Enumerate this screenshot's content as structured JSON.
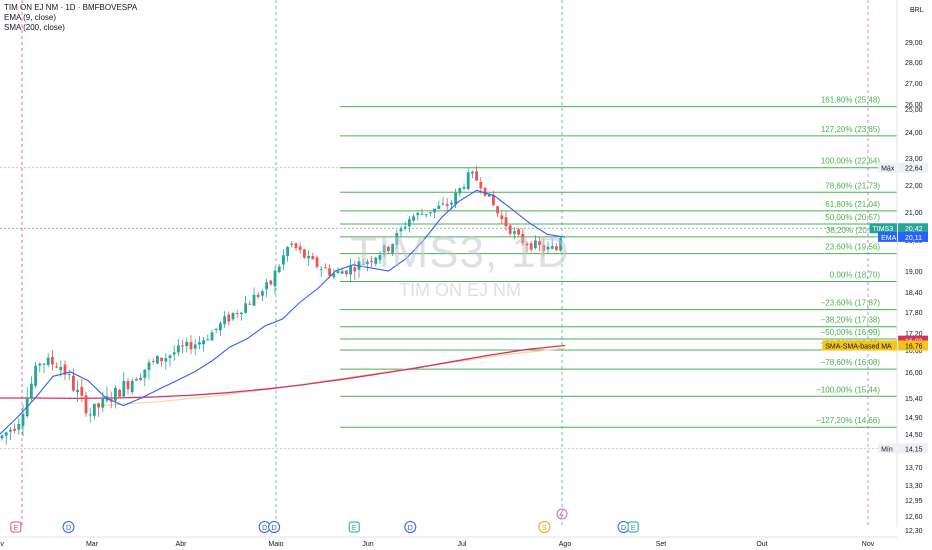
{
  "header": {
    "symbol_line": "TIM ON EJ NM · 1D · BMFBOVESPA",
    "indicator_1": "EMA (9, close)",
    "indicator_2": "SMA (200, close)"
  },
  "watermark": {
    "ticker": "TIMS3, 1D",
    "name": "TIM ON EJ NM"
  },
  "chart_data": {
    "type": "line",
    "currency_label": "BRL",
    "price_axis": {
      "ticks": [
        29.0,
        28.0,
        27.0,
        26.0,
        25.0,
        24.0,
        23.0,
        22.0,
        21.0,
        20.0,
        19.0,
        18.4,
        17.8,
        17.2,
        16.6,
        16.0,
        15.4,
        14.9,
        14.5,
        13.7,
        13.3,
        12.95,
        12.6,
        12.3
      ],
      "tick_labels": [
        "29,00",
        "28,00",
        "27,00",
        "26,00",
        "25,00",
        "24,00",
        "23,00",
        "22,00",
        "21,00",
        "20,00",
        "19,00",
        "18,40",
        "17,80",
        "17,20",
        "16,60",
        "16,00",
        "15,40",
        "14,90",
        "14,50",
        "13,70",
        "13,30",
        "12,95",
        "12,60",
        "12,30"
      ]
    },
    "x_axis_labels": [
      "Fev",
      "Mar",
      "Abr",
      "Maio",
      "Jun",
      "Jul",
      "Ago",
      "Set",
      "Out",
      "Nov"
    ],
    "price_labels": [
      {
        "text": "Máx",
        "value": "22,64",
        "price": 22.64
      },
      {
        "text": "TIMS3",
        "value": "20,42",
        "price": 20.42
      },
      {
        "text": "EMA",
        "value": "20,11",
        "price": 20.11
      },
      {
        "text": "",
        "value": "16,93",
        "price": 16.93
      },
      {
        "text": "SMA-SMA-based MA",
        "value": "16,76",
        "price": 16.76
      },
      {
        "text": "Mín",
        "value": "14,15",
        "price": 14.15
      }
    ],
    "fibonacci": [
      {
        "label": "161,80% (25,48)",
        "price": 25.48
      },
      {
        "label": "127,20% (23,85)",
        "price": 23.85
      },
      {
        "label": "100,00% (22,64)",
        "price": 22.64
      },
      {
        "label": "78,60% (21,73)",
        "price": 21.73
      },
      {
        "label": "61,80% (21,04)",
        "price": 21.04
      },
      {
        "label": "50,00% (20,57)",
        "price": 20.57
      },
      {
        "label": "38,20% (20,11)",
        "price": 20.11
      },
      {
        "label": "23,60% (19,56)",
        "price": 19.56
      },
      {
        "label": "0,00% (18,70)",
        "price": 18.7
      },
      {
        "label": "−23,60% (17,87)",
        "price": 17.87
      },
      {
        "label": "−38,20% (17,38)",
        "price": 17.38
      },
      {
        "label": "−50,00% (16,99)",
        "price": 16.99
      },
      {
        "label": "−61,80% (16,60)",
        "price": 16.6
      },
      {
        "label": "−78,60% (16,08)",
        "price": 16.08
      },
      {
        "label": "−100,00% (15,44)",
        "price": 15.44
      },
      {
        "label": "−127,20% (14,66)",
        "price": 14.66
      }
    ],
    "ema_9": [
      14.5,
      14.9,
      15.4,
      15.9,
      16.0,
      15.8,
      15.4,
      15.2,
      15.4,
      15.6,
      15.8,
      16.0,
      16.3,
      16.7,
      17.0,
      17.4,
      17.6,
      18.1,
      18.5,
      19.0,
      19.2,
      19.1,
      19.0,
      19.4,
      20.0,
      20.8,
      21.4,
      21.8,
      21.6,
      21.1,
      20.6,
      20.2,
      20.1
    ],
    "sma_200": [
      15.4,
      15.4,
      15.39,
      15.4,
      15.42,
      15.46,
      15.52,
      15.6,
      15.7,
      15.82,
      15.95,
      16.1,
      16.28,
      16.46,
      16.62,
      16.76
    ],
    "sma_based_ma": [
      15.2,
      15.3,
      15.45,
      15.62,
      15.82,
      16.02,
      16.25,
      16.48,
      16.66
    ],
    "events": [
      {
        "type": "E",
        "month_pos": 0.19
      },
      {
        "type": "D",
        "month_pos": 0.75
      },
      {
        "type": "D",
        "month_pos": 2.88
      },
      {
        "type": "D",
        "month_pos": 2.98
      },
      {
        "type": "E",
        "month_pos": 3.85
      },
      {
        "type": "D",
        "month_pos": 4.45
      },
      {
        "type": "S",
        "month_pos": 5.8
      },
      {
        "type": "D",
        "month_pos": 6.61
      },
      {
        "type": "E",
        "month_pos": 6.71
      },
      {
        "type": "E",
        "month_pos": 9.75
      }
    ],
    "grid": false
  }
}
